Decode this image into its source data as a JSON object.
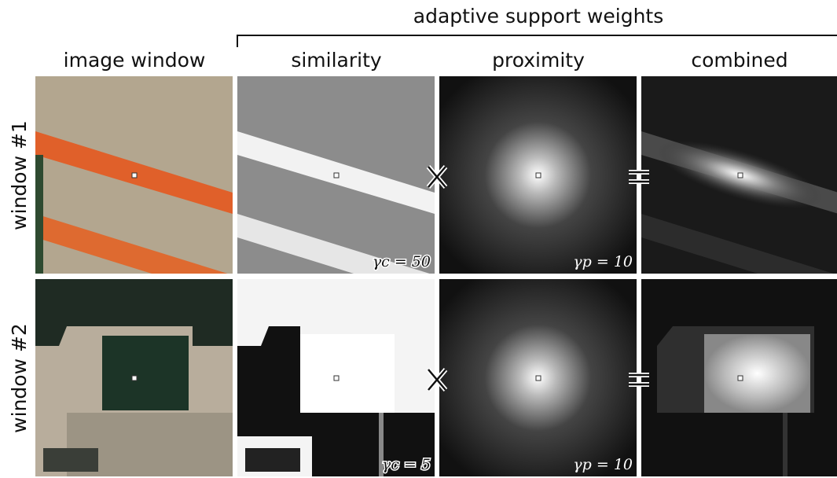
{
  "header": {
    "title": "adaptive support weights"
  },
  "columns": [
    "image window",
    "similarity",
    "proximity",
    "combined"
  ],
  "rows": [
    {
      "label": "window #1",
      "annotations": [
        "γc = 50",
        "γp = 10"
      ]
    },
    {
      "label": "window #2",
      "annotations": [
        "γc = 5",
        "γp = 10"
      ]
    }
  ]
}
